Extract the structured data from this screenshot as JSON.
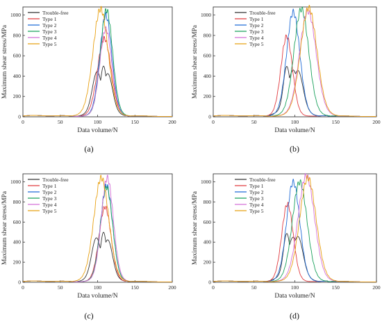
{
  "figure": {
    "panels": [
      {
        "label": "(a)",
        "chart_data": {
          "type": "line",
          "xlabel": "Data volume/N",
          "ylabel": "Maximum shear stress/MPa",
          "xlim": [
            0,
            200
          ],
          "ylim": [
            0,
            1080
          ],
          "xticks": [
            0,
            50,
            100,
            150,
            200
          ],
          "yticks": [
            0,
            200,
            400,
            600,
            800,
            1000
          ],
          "grid": false,
          "legend": "top-left",
          "series": [
            {
              "name": "Trouble-free",
              "color": "#333333",
              "type": "tf",
              "peaks": [
                [
                  99,
                  340,
                  6
                ],
                [
                  108,
                  380,
                  4
                ],
                [
                  114,
                  320,
                  6
                ]
              ],
              "peak": 390,
              "center": 107,
              "width": 7
            },
            {
              "name": "Type 1",
              "color": "#e0393e",
              "type": "bell",
              "center": 109,
              "width": 9,
              "peak": 740,
              "shift": 0
            },
            {
              "name": "Type 2",
              "color": "#1f6bd6",
              "type": "bell",
              "center": 111,
              "width": 8,
              "peak": 960
            },
            {
              "name": "Type 3",
              "color": "#18a05a",
              "type": "bell",
              "center": 112,
              "width": 8,
              "peak": 1010
            },
            {
              "name": "Type 4",
              "color": "#d46fd6",
              "type": "bell",
              "center": 111,
              "width": 8,
              "peak": 830
            },
            {
              "name": "Type 5",
              "color": "#e8a010",
              "type": "bell",
              "center": 104,
              "width": 10,
              "peak": 1020
            }
          ]
        }
      },
      {
        "label": "(b)",
        "chart_data": {
          "type": "line",
          "xlabel": "Data volume/N",
          "ylabel": "Maximum shear stress/MPa",
          "xlim": [
            0,
            200
          ],
          "ylim": [
            0,
            1080
          ],
          "xticks": [
            0,
            50,
            100,
            150,
            200
          ],
          "yticks": [
            0,
            200,
            400,
            600,
            800,
            1000
          ],
          "grid": false,
          "legend": "top-center",
          "series": [
            {
              "name": "Trouble-free",
              "color": "#333333",
              "type": "tf",
              "peaks": [
                [
                  90,
                  390,
                  4
                ],
                [
                  98,
                  340,
                  6
                ],
                [
                  104,
                  350,
                  6
                ]
              ]
            },
            {
              "name": "Type 1",
              "color": "#e0393e",
              "type": "bell",
              "center": 90,
              "width": 7,
              "peak": 760
            },
            {
              "name": "Type 2",
              "color": "#1f6bd6",
              "type": "bell",
              "center": 98,
              "width": 8,
              "peak": 990
            },
            {
              "name": "Type 3",
              "color": "#18a05a",
              "type": "bell",
              "center": 108,
              "width": 9,
              "peak": 1020
            },
            {
              "name": "Type 4",
              "color": "#d46fd6",
              "type": "bell",
              "center": 116,
              "width": 10,
              "peak": 1000
            },
            {
              "name": "Type 5",
              "color": "#e8a010",
              "type": "bell",
              "center": 117,
              "width": 10,
              "peak": 1030
            }
          ]
        }
      },
      {
        "label": "(c)",
        "chart_data": {
          "type": "line",
          "xlabel": "Data volume/N",
          "ylabel": "Maximum shear stress/MPa",
          "xlim": [
            0,
            200
          ],
          "ylim": [
            0,
            1080
          ],
          "xticks": [
            0,
            50,
            100,
            150,
            200
          ],
          "yticks": [
            0,
            200,
            400,
            600,
            800,
            1000
          ],
          "grid": false,
          "legend": "top-left",
          "series": [
            {
              "name": "Trouble-free",
              "color": "#333333",
              "type": "tf",
              "peaks": [
                [
                  98,
                  340,
                  6
                ],
                [
                  108,
                  380,
                  4
                ],
                [
                  114,
                  320,
                  6
                ]
              ]
            },
            {
              "name": "Type 1",
              "color": "#e0393e",
              "type": "bell",
              "center": 110,
              "width": 8,
              "peak": 720
            },
            {
              "name": "Type 2",
              "color": "#1f6bd6",
              "type": "bell",
              "center": 112,
              "width": 8,
              "peak": 930
            },
            {
              "name": "Type 3",
              "color": "#18a05a",
              "type": "bell",
              "center": 112,
              "width": 8,
              "peak": 910
            },
            {
              "name": "Type 4",
              "color": "#d46fd6",
              "type": "bell",
              "center": 113,
              "width": 8,
              "peak": 1000
            },
            {
              "name": "Type 5",
              "color": "#e8a010",
              "type": "bell",
              "center": 105,
              "width": 10,
              "peak": 1000
            }
          ]
        }
      },
      {
        "label": "(d)",
        "chart_data": {
          "type": "line",
          "xlabel": "Data volume/N",
          "ylabel": "Maximum shear stress/MPa",
          "xlim": [
            0,
            200
          ],
          "ylim": [
            0,
            1080
          ],
          "xticks": [
            0,
            50,
            100,
            150,
            200
          ],
          "yticks": [
            0,
            200,
            400,
            600,
            800,
            1000
          ],
          "grid": false,
          "legend": "top-center",
          "series": [
            {
              "name": "Trouble-free",
              "color": "#333333",
              "type": "tf",
              "peaks": [
                [
                  90,
                  380,
                  4
                ],
                [
                  98,
                  330,
                  6
                ],
                [
                  104,
                  350,
                  6
                ]
              ]
            },
            {
              "name": "Type 1",
              "color": "#e0393e",
              "type": "bell",
              "center": 91,
              "width": 7,
              "peak": 750
            },
            {
              "name": "Type 2",
              "color": "#1f6bd6",
              "type": "bell",
              "center": 98,
              "width": 8,
              "peak": 960
            },
            {
              "name": "Type 3",
              "color": "#18a05a",
              "type": "bell",
              "center": 106,
              "width": 9,
              "peak": 960
            },
            {
              "name": "Type 4",
              "color": "#d46fd6",
              "type": "bell",
              "center": 114,
              "width": 10,
              "peak": 1020
            },
            {
              "name": "Type 5",
              "color": "#e8a010",
              "type": "bell",
              "center": 116,
              "width": 10,
              "peak": 1000
            }
          ]
        }
      }
    ]
  }
}
